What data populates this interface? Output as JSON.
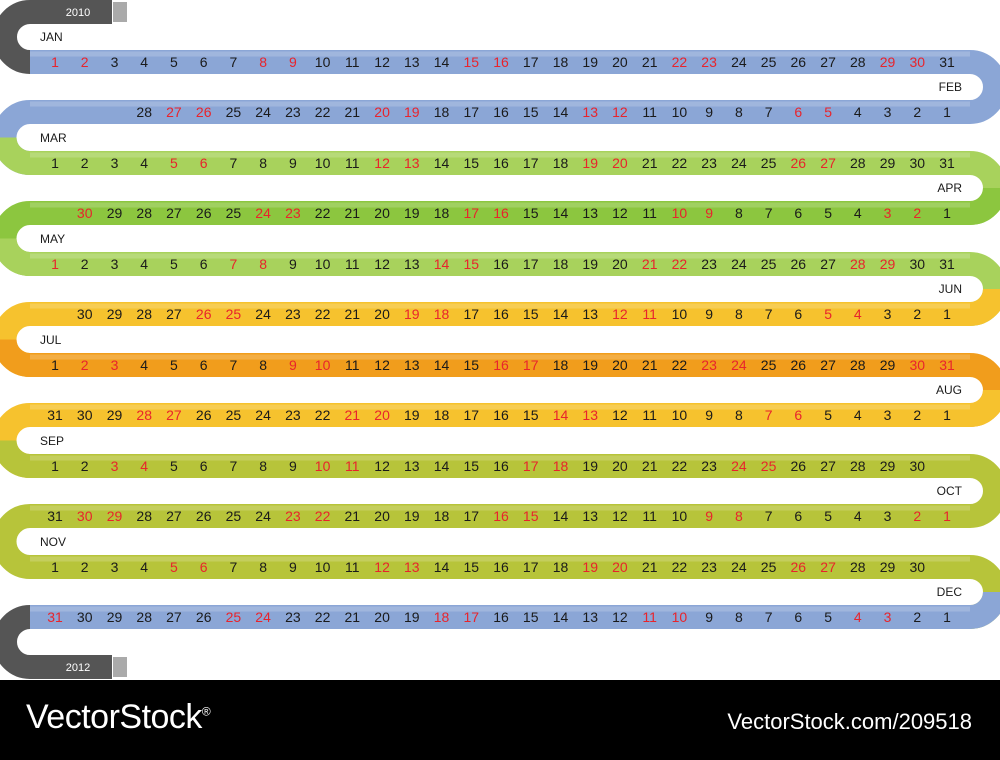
{
  "calendar": {
    "year_start": "2010",
    "year_end": "2012",
    "colors": {
      "blue": "#8ba6d6",
      "light_green": "#a8d25c",
      "green": "#8cc63f",
      "yellow": "#f6c22e",
      "orange": "#f19d1c",
      "olive": "#b7c43a",
      "cap": "#555555",
      "weekday_text": "#1a1a1a",
      "weekend_text": "#e8242c"
    },
    "months": [
      {
        "name": "JAN",
        "color": "blue",
        "days": 31,
        "red": [
          1,
          2,
          8,
          9,
          15,
          16,
          22,
          23,
          29,
          30
        ]
      },
      {
        "name": "FEB",
        "color": "blue",
        "days": 28,
        "red": [
          5,
          6,
          12,
          13,
          19,
          20,
          26,
          27
        ]
      },
      {
        "name": "MAR",
        "color": "light_green",
        "days": 31,
        "red": [
          5,
          6,
          12,
          13,
          19,
          20,
          26,
          27
        ]
      },
      {
        "name": "APR",
        "color": "green",
        "days": 30,
        "red": [
          2,
          3,
          9,
          10,
          16,
          17,
          23,
          24,
          30
        ]
      },
      {
        "name": "MAY",
        "color": "light_green",
        "days": 31,
        "red": [
          1,
          7,
          8,
          14,
          15,
          21,
          22,
          28,
          29
        ]
      },
      {
        "name": "JUN",
        "color": "yellow",
        "days": 30,
        "red": [
          4,
          5,
          11,
          12,
          18,
          19,
          25,
          26
        ]
      },
      {
        "name": "JUL",
        "color": "orange",
        "days": 31,
        "red": [
          2,
          3,
          9,
          10,
          16,
          17,
          23,
          24,
          30,
          31
        ]
      },
      {
        "name": "AUG",
        "color": "yellow",
        "days": 31,
        "red": [
          6,
          7,
          13,
          14,
          20,
          21,
          27,
          28
        ]
      },
      {
        "name": "SEP",
        "color": "olive",
        "days": 30,
        "red": [
          3,
          4,
          10,
          11,
          17,
          18,
          24,
          25
        ]
      },
      {
        "name": "OCT",
        "color": "olive",
        "days": 31,
        "red": [
          1,
          2,
          8,
          9,
          15,
          16,
          22,
          23,
          29,
          30
        ]
      },
      {
        "name": "NOV",
        "color": "olive",
        "days": 30,
        "red": [
          5,
          6,
          12,
          13,
          19,
          20,
          26,
          27
        ]
      },
      {
        "name": "DEC",
        "color": "blue",
        "days": 31,
        "red": [
          3,
          4,
          10,
          11,
          17,
          18,
          24,
          25,
          31
        ]
      }
    ]
  },
  "footer": {
    "brand": "VectorStock",
    "registered_mark": "®",
    "image_id": "VectorStock.com/209518"
  }
}
